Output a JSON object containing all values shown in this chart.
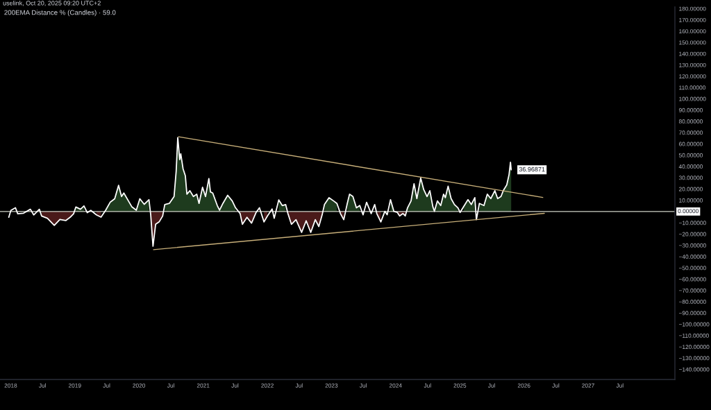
{
  "chart_data": {
    "type": "line",
    "title": "200EMA Distance % (Candles) · 59.0",
    "subtitle": "uselink, Oct 20, 2025 09:20 UTC+2",
    "x": [
      "2017-12-21",
      "2018-01-02",
      "2018-01-28",
      "2018-02-10",
      "2018-03-15",
      "2018-04-23",
      "2018-05-12",
      "2018-06-13",
      "2018-06-26",
      "2018-07-29",
      "2018-09-06",
      "2018-10-08",
      "2018-11-10",
      "2018-12-06",
      "2018-12-25",
      "2019-01-07",
      "2019-02-02",
      "2019-02-22",
      "2019-03-13",
      "2019-04-02",
      "2019-05-04",
      "2019-05-30",
      "2019-06-25",
      "2019-07-21",
      "2019-08-16",
      "2019-09-07",
      "2019-09-24",
      "2019-10-07",
      "2019-11-02",
      "2019-11-21",
      "2019-12-17",
      "2020-01-06",
      "2020-01-31",
      "2020-02-27",
      "2020-03-08",
      "2020-03-21",
      "2020-04-05",
      "2020-04-25",
      "2020-05-15",
      "2020-05-27",
      "2020-06-22",
      "2020-07-19",
      "2020-07-31",
      "2020-08-09",
      "2020-08-20",
      "2020-08-26",
      "2020-09-08",
      "2020-09-21",
      "2020-09-30",
      "2020-10-17",
      "2020-11-06",
      "2020-11-25",
      "2020-12-08",
      "2020-12-28",
      "2021-01-14",
      "2021-02-02",
      "2021-02-11",
      "2021-02-24",
      "2021-03-22",
      "2021-04-04",
      "2021-04-23",
      "2021-05-20",
      "2021-06-15",
      "2021-07-04",
      "2021-07-30",
      "2021-08-12",
      "2021-09-07",
      "2021-10-03",
      "2021-10-29",
      "2021-11-17",
      "2021-12-13",
      "2022-01-01",
      "2022-01-28",
      "2022-02-09",
      "2022-03-07",
      "2022-03-27",
      "2022-04-15",
      "2022-04-28",
      "2022-05-18",
      "2022-06-13",
      "2022-07-15",
      "2022-08-10",
      "2022-09-05",
      "2022-10-01",
      "2022-10-21",
      "2022-11-09",
      "2022-11-22",
      "2022-12-18",
      "2023-01-13",
      "2023-02-01",
      "2023-02-21",
      "2023-03-12",
      "2023-04-01",
      "2023-04-14",
      "2023-05-03",
      "2023-05-23",
      "2023-06-11",
      "2023-06-30",
      "2023-07-20",
      "2023-08-15",
      "2023-09-04",
      "2023-09-16",
      "2023-10-09",
      "2023-11-01",
      "2023-11-14",
      "2023-12-03",
      "2023-12-22",
      "2024-01-11",
      "2024-01-24",
      "2024-02-12",
      "2024-02-25",
      "2024-03-09",
      "2024-03-29",
      "2024-04-15",
      "2024-05-01",
      "2024-05-23",
      "2024-06-09",
      "2024-06-28",
      "2024-07-14",
      "2024-07-31",
      "2024-08-09",
      "2024-08-26",
      "2024-09-14",
      "2024-09-30",
      "2024-10-10",
      "2024-10-26",
      "2024-11-12",
      "2024-12-01",
      "2024-12-21",
      "2025-01-02",
      "2025-01-22",
      "2025-02-16",
      "2025-03-07",
      "2025-03-27",
      "2025-04-05",
      "2025-04-22",
      "2025-05-18",
      "2025-06-06",
      "2025-06-26",
      "2025-07-19",
      "2025-08-04",
      "2025-08-23",
      "2025-09-05",
      "2025-09-25",
      "2025-10-08",
      "2025-10-16",
      "2025-10-20"
    ],
    "series": [
      {
        "type": "area",
        "color": "#1e3b1e",
        "values": [
          null,
          null,
          null,
          null,
          null,
          null,
          null,
          null,
          null,
          null,
          null,
          null,
          null,
          null,
          null,
          4.0,
          2.0,
          5.0,
          null,
          null,
          null,
          null,
          1.0,
          8.2,
          11.3,
          23.2,
          13.3,
          16.4,
          9.4,
          4.3,
          1.2,
          11.3,
          6.4,
          10.5,
          null,
          null,
          null,
          null,
          null,
          6.2,
          7.2,
          13.3,
          35.9,
          65.6,
          46.0,
          51.3,
          38.0,
          31.8,
          15.4,
          18.5,
          13.3,
          15.4,
          7.2,
          21.5,
          13.3,
          29.3,
          17.4,
          16.4,
          5.3,
          1.2,
          7.2,
          14.4,
          9.4,
          3.3,
          null,
          null,
          null,
          null,
          null,
          null,
          null,
          null,
          null,
          null,
          10.3,
          5.3,
          6.2,
          null,
          null,
          null,
          null,
          null,
          null,
          null,
          null,
          null,
          6.2,
          12.3,
          9.4,
          7.2,
          null,
          null,
          7.2,
          15.4,
          13.3,
          3.3,
          5.3,
          null,
          null,
          null,
          null,
          null,
          null,
          null,
          null,
          10.5,
          0.2,
          null,
          null,
          null,
          null,
          3.3,
          9.4,
          24.6,
          11.5,
          29.7,
          19.5,
          13.3,
          18.5,
          4.3,
          0.2,
          9.4,
          5.3,
          15.4,
          12.3,
          22.5,
          11.5,
          6.2,
          3.3,
          null,
          4.3,
          10.5,
          6.2,
          12.3,
          null,
          7.2,
          5.3,
          15.4,
          11.5,
          18.5,
          11.5,
          13.3,
          18.5,
          23.6,
          32.8,
          43.7,
          37.0
        ]
      },
      {
        "type": "area",
        "color": "#4a1a1a",
        "values": [
          null,
          null,
          null,
          null,
          null,
          null,
          null,
          null,
          -4.0,
          -6.0,
          -12.3,
          -7.0,
          -8.0,
          -5.0,
          -2.0,
          null,
          null,
          null,
          null,
          null,
          -3.0,
          -5.0,
          null,
          null,
          null,
          null,
          null,
          null,
          null,
          null,
          null,
          null,
          null,
          null,
          -2.9,
          -30.8,
          -11.3,
          -9.2,
          -4.0,
          null,
          null,
          null,
          null,
          null,
          null,
          null,
          null,
          null,
          null,
          null,
          null,
          null,
          null,
          null,
          null,
          null,
          null,
          null,
          null,
          null,
          null,
          null,
          null,
          null,
          -1.8,
          -11.3,
          -5.1,
          -10.3,
          -0.8,
          null,
          -9.2,
          -4.1,
          null,
          null,
          null,
          null,
          null,
          -1.8,
          -11.3,
          -7.2,
          -18.5,
          -8.2,
          -18.5,
          -7.2,
          -13.3,
          -2.9,
          null,
          null,
          null,
          null,
          -1.8,
          -7.2,
          null,
          null,
          null,
          null,
          null,
          null,
          null,
          null,
          null,
          -1.8,
          -9.2,
          null,
          null,
          null,
          null,
          -0.8,
          -3.9,
          -1.8,
          -3.9,
          null,
          null,
          null,
          null,
          null,
          null,
          null,
          null,
          null,
          null,
          null,
          null,
          null,
          null,
          null,
          null,
          null,
          null,
          null,
          null,
          null,
          null,
          null,
          null,
          null,
          null,
          null,
          null,
          null,
          null,
          null,
          null,
          null,
          null,
          null,
          null
        ]
      },
      {
        "color": "#ffffff",
        "values": [
          -5.1,
          1.0,
          3.3,
          -2.0,
          -1.5,
          2.0,
          -3.0,
          2.0,
          -4.0,
          -6.0,
          -12.3,
          -7.0,
          -8.0,
          -5.0,
          -2.0,
          4.0,
          2.0,
          5.0,
          -1.0,
          1.0,
          -3.0,
          -5.0,
          1.0,
          8.2,
          11.3,
          23.2,
          13.3,
          16.4,
          9.4,
          4.3,
          1.2,
          11.3,
          6.4,
          10.5,
          -2.9,
          -30.8,
          -11.3,
          -9.2,
          -4.0,
          6.2,
          7.2,
          13.3,
          35.9,
          65.6,
          46.0,
          51.3,
          38.0,
          31.8,
          15.4,
          18.5,
          13.3,
          15.4,
          7.2,
          21.5,
          13.3,
          29.3,
          17.4,
          16.4,
          5.3,
          1.2,
          7.2,
          14.4,
          9.4,
          3.3,
          -1.8,
          -11.3,
          -5.1,
          -10.3,
          -0.8,
          3.3,
          -9.2,
          -4.1,
          2.3,
          -6.0,
          10.3,
          5.3,
          6.2,
          -1.8,
          -11.3,
          -7.2,
          -18.5,
          -8.2,
          -18.5,
          -7.2,
          -13.3,
          -2.9,
          6.2,
          12.3,
          9.4,
          7.2,
          -1.8,
          -7.2,
          7.2,
          15.4,
          13.3,
          3.3,
          5.3,
          -2.9,
          8.2,
          -1.8,
          6.2,
          -1.8,
          -9.2,
          0.2,
          -2.9,
          10.5,
          0.2,
          -0.8,
          -3.9,
          -1.8,
          -3.9,
          3.3,
          9.4,
          24.6,
          11.5,
          29.7,
          19.5,
          13.3,
          18.5,
          4.3,
          0.2,
          9.4,
          5.3,
          15.4,
          12.3,
          22.5,
          11.5,
          6.2,
          3.3,
          -0.8,
          4.3,
          10.5,
          6.2,
          12.3,
          -7.2,
          7.2,
          5.3,
          15.4,
          11.5,
          18.5,
          11.5,
          13.3,
          18.5,
          23.6,
          32.8,
          43.7,
          37.0
        ]
      },
      {
        "type": "line",
        "color": "#c9b07a",
        "x": [
          "2020-08-13",
          "2026-04-18"
        ],
        "values": [
          66.3,
          12.5
        ]
      },
      {
        "type": "line",
        "color": "#c9b07a",
        "x": [
          "2020-03-24",
          "2026-04-27"
        ],
        "values": [
          -33.8,
          -1.6
        ]
      }
    ],
    "ref_lines": [
      {
        "axis": "y",
        "value": 0,
        "label": "0.00000",
        "color": "#cfd3c8"
      }
    ],
    "annotations": [
      {
        "text": "36.96871",
        "x": "2025-10-20",
        "y": 36.96871
      }
    ],
    "xlim": [
      "2017-11-01",
      "2028-05-09"
    ],
    "ylim": [
      -149,
      181.5
    ],
    "xticks": [
      {
        "value": "2018-01",
        "label": "2018"
      },
      {
        "value": "2018-07",
        "label": "Jul"
      },
      {
        "value": "2019-01",
        "label": "2019"
      },
      {
        "value": "2019-07",
        "label": "Jul"
      },
      {
        "value": "2020-01",
        "label": "2020"
      },
      {
        "value": "2020-07",
        "label": "Jul"
      },
      {
        "value": "2021-01",
        "label": "2021"
      },
      {
        "value": "2021-07",
        "label": "Jul"
      },
      {
        "value": "2022-01",
        "label": "2022"
      },
      {
        "value": "2022-07",
        "label": "Jul"
      },
      {
        "value": "2023-01",
        "label": "2023"
      },
      {
        "value": "2023-07",
        "label": "Jul"
      },
      {
        "value": "2024-01",
        "label": "2024"
      },
      {
        "value": "2024-07",
        "label": "Jul"
      },
      {
        "value": "2025-01",
        "label": "2025"
      },
      {
        "value": "2025-07",
        "label": "Jul"
      },
      {
        "value": "2026-01",
        "label": "2026"
      },
      {
        "value": "2026-07",
        "label": "Jul"
      },
      {
        "value": "2027-01",
        "label": "2027"
      },
      {
        "value": "2027-07",
        "label": "Jul"
      }
    ],
    "yticks": [
      {
        "value": -140,
        "label": "−140.00000"
      },
      {
        "value": -130,
        "label": "−130.00000"
      },
      {
        "value": -120,
        "label": "−120.00000"
      },
      {
        "value": -110,
        "label": "−110.00000"
      },
      {
        "value": -100,
        "label": "−100.00000"
      },
      {
        "value": -90,
        "label": "−90.00000"
      },
      {
        "value": -80,
        "label": "−80.00000"
      },
      {
        "value": -70,
        "label": "−70.00000"
      },
      {
        "value": -60,
        "label": "−60.00000"
      },
      {
        "value": -50,
        "label": "−50.00000"
      },
      {
        "value": -40,
        "label": "−40.00000"
      },
      {
        "value": -30,
        "label": "−30.00000"
      },
      {
        "value": -20,
        "label": "−20.00000"
      },
      {
        "value": -10,
        "label": "−10.00000"
      },
      {
        "value": 10,
        "label": "10.00000"
      },
      {
        "value": 20,
        "label": "20.00000"
      },
      {
        "value": 30,
        "label": "30.00000"
      },
      {
        "value": 40,
        "label": "40.00000"
      },
      {
        "value": 50,
        "label": "50.00000"
      },
      {
        "value": 60,
        "label": "60.00000"
      },
      {
        "value": 70,
        "label": "70.00000"
      },
      {
        "value": 80,
        "label": "80.00000"
      },
      {
        "value": 90,
        "label": "90.00000"
      },
      {
        "value": 100,
        "label": "100.00000"
      },
      {
        "value": 110,
        "label": "110.00000"
      },
      {
        "value": 120,
        "label": "120.00000"
      },
      {
        "value": 130,
        "label": "130.00000"
      },
      {
        "value": 140,
        "label": "140.00000"
      },
      {
        "value": 150,
        "label": "150.00000"
      },
      {
        "value": 160,
        "label": "160.00000"
      },
      {
        "value": 170,
        "label": "170.00000"
      },
      {
        "value": 180,
        "label": "180.00000"
      }
    ],
    "grid": false
  }
}
